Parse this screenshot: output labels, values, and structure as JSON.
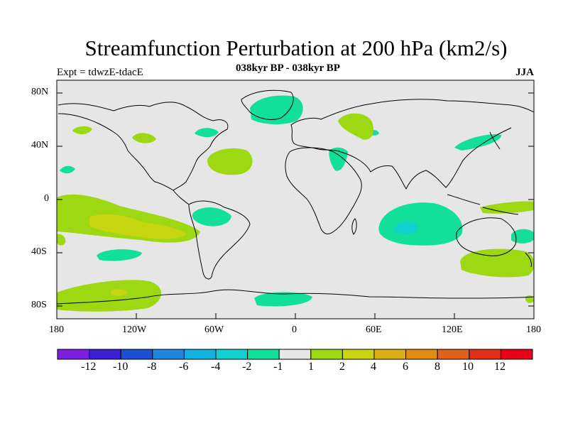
{
  "title": "Streamfunction Perturbation at 200 hPa (km2/s)",
  "subtitle": "038kyr BP - 038kyr BP",
  "left_label": "Expt = tdwzE-tdacE",
  "right_label": "JJA",
  "lat_ticks": [
    "80N",
    "40N",
    "0",
    "40S",
    "80S"
  ],
  "lon_ticks": [
    "180",
    "120W",
    "60W",
    "0",
    "60E",
    "120E",
    "180"
  ],
  "colorbar": {
    "labels": [
      "-12",
      "-10",
      "-8",
      "-6",
      "-4",
      "-2",
      "-1",
      "1",
      "2",
      "4",
      "6",
      "8",
      "10",
      "12"
    ],
    "colors": [
      "#7d1fe0",
      "#3a1fd6",
      "#1f4fd6",
      "#1f87e0",
      "#12b0e0",
      "#12d0d0",
      "#12e09a",
      "#e6e6e6",
      "#9ed812",
      "#c8d612",
      "#dcae12",
      "#e08a12",
      "#e0621a",
      "#e23018",
      "#e6001a"
    ]
  },
  "map": {
    "background": "#e6e6e6",
    "regions": [
      {
        "name": "north-atlantic-negative",
        "level": "-2"
      },
      {
        "name": "north-pacific-positive",
        "level": "2"
      },
      {
        "name": "south-pacific-positive-band",
        "level": "2"
      },
      {
        "name": "south-pacific-core",
        "level": "4"
      },
      {
        "name": "indian-ocean-negative",
        "level": "-2"
      },
      {
        "name": "indian-ocean-core",
        "level": "-4"
      },
      {
        "name": "southern-ocean-positive",
        "level": "2"
      },
      {
        "name": "australia-south-positive",
        "level": "2"
      }
    ]
  }
}
